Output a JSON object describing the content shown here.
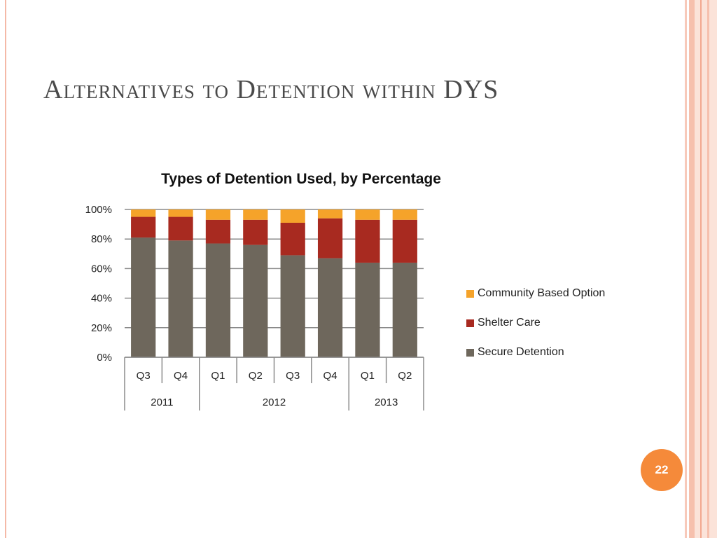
{
  "slide": {
    "title": "Alternatives to Detention within DYS",
    "page_number": "22"
  },
  "colors": {
    "accent": "#f58a3a",
    "secure": "#6e675c",
    "shelter": "#a82a20",
    "community": "#f5a32a"
  },
  "chart_data": {
    "type": "bar",
    "stacked": true,
    "title": "Types of Detention Used, by Percentage",
    "categories": [
      "Q3",
      "Q4",
      "Q1",
      "Q2",
      "Q3",
      "Q4",
      "Q1",
      "Q2"
    ],
    "groups": [
      {
        "label": "2011",
        "count": 2
      },
      {
        "label": "2012",
        "count": 4
      },
      {
        "label": "2013",
        "count": 2
      }
    ],
    "series": [
      {
        "name": "Secure Detention",
        "color": "#6e675c",
        "values": [
          81,
          79,
          77,
          76,
          69,
          67,
          64,
          64
        ]
      },
      {
        "name": "Shelter Care",
        "color": "#a82a20",
        "values": [
          14,
          16,
          16,
          17,
          22,
          27,
          29,
          29
        ]
      },
      {
        "name": "Community Based Option",
        "color": "#f5a32a",
        "values": [
          5,
          5,
          7,
          7,
          9,
          6,
          7,
          7
        ]
      }
    ],
    "ylim": [
      0,
      100
    ],
    "yticks": [
      0,
      20,
      40,
      60,
      80,
      100
    ],
    "ytick_labels": [
      "0%",
      "20%",
      "40%",
      "60%",
      "80%",
      "100%"
    ],
    "grid": true,
    "legend_position": "right",
    "legend_order": [
      "Community Based Option",
      "Shelter Care",
      "Secure Detention"
    ],
    "xlabel": "",
    "ylabel": ""
  }
}
